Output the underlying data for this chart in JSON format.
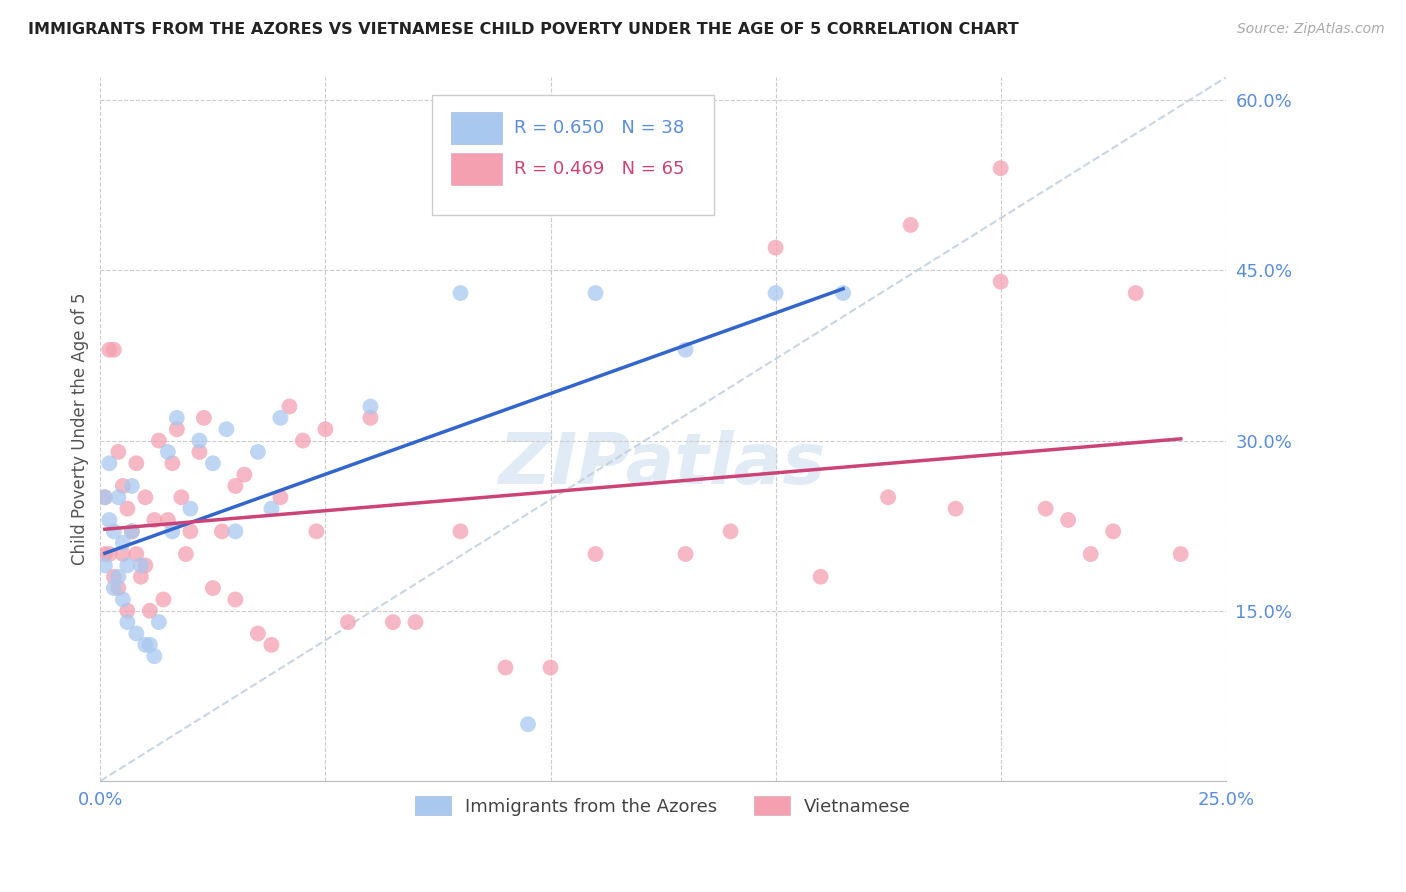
{
  "title": "IMMIGRANTS FROM THE AZORES VS VIETNAMESE CHILD POVERTY UNDER THE AGE OF 5 CORRELATION CHART",
  "source": "Source: ZipAtlas.com",
  "ylabel": "Child Poverty Under the Age of 5",
  "legend_label1": "Immigrants from the Azores",
  "legend_label2": "Vietnamese",
  "R1": 0.65,
  "N1": 38,
  "R2": 0.469,
  "N2": 65,
  "xlim": [
    0,
    0.25
  ],
  "ylim": [
    0,
    0.62
  ],
  "color_blue": "#A8C8F0",
  "color_pink": "#F4A0B0",
  "color_blue_line": "#3366CC",
  "color_pink_line": "#CC4477",
  "color_axis_labels": "#5B8DD9",
  "background_color": "#FFFFFF",
  "azores_x": [
    0.001,
    0.001,
    0.002,
    0.002,
    0.003,
    0.003,
    0.004,
    0.004,
    0.005,
    0.005,
    0.006,
    0.006,
    0.007,
    0.007,
    0.008,
    0.009,
    0.01,
    0.011,
    0.012,
    0.013,
    0.015,
    0.016,
    0.017,
    0.02,
    0.022,
    0.025,
    0.028,
    0.03,
    0.035,
    0.038,
    0.04,
    0.06,
    0.08,
    0.095,
    0.11,
    0.13,
    0.15,
    0.165
  ],
  "azores_y": [
    0.25,
    0.19,
    0.23,
    0.28,
    0.22,
    0.17,
    0.25,
    0.18,
    0.21,
    0.16,
    0.19,
    0.14,
    0.26,
    0.22,
    0.13,
    0.19,
    0.12,
    0.12,
    0.11,
    0.14,
    0.29,
    0.22,
    0.32,
    0.24,
    0.3,
    0.28,
    0.31,
    0.22,
    0.29,
    0.24,
    0.32,
    0.33,
    0.43,
    0.05,
    0.43,
    0.38,
    0.43,
    0.43
  ],
  "viet_x": [
    0.001,
    0.001,
    0.002,
    0.002,
    0.003,
    0.003,
    0.004,
    0.004,
    0.005,
    0.005,
    0.006,
    0.006,
    0.007,
    0.008,
    0.008,
    0.009,
    0.01,
    0.01,
    0.011,
    0.012,
    0.013,
    0.014,
    0.015,
    0.016,
    0.017,
    0.018,
    0.019,
    0.02,
    0.022,
    0.023,
    0.025,
    0.027,
    0.03,
    0.032,
    0.035,
    0.038,
    0.04,
    0.042,
    0.045,
    0.048,
    0.05,
    0.055,
    0.06,
    0.065,
    0.07,
    0.08,
    0.09,
    0.1,
    0.11,
    0.13,
    0.15,
    0.16,
    0.175,
    0.19,
    0.2,
    0.21,
    0.22,
    0.23,
    0.18,
    0.2,
    0.215,
    0.225,
    0.24,
    0.14,
    0.03
  ],
  "viet_y": [
    0.2,
    0.25,
    0.2,
    0.38,
    0.18,
    0.38,
    0.17,
    0.29,
    0.2,
    0.26,
    0.15,
    0.24,
    0.22,
    0.2,
    0.28,
    0.18,
    0.19,
    0.25,
    0.15,
    0.23,
    0.3,
    0.16,
    0.23,
    0.28,
    0.31,
    0.25,
    0.2,
    0.22,
    0.29,
    0.32,
    0.17,
    0.22,
    0.16,
    0.27,
    0.13,
    0.12,
    0.25,
    0.33,
    0.3,
    0.22,
    0.31,
    0.14,
    0.32,
    0.14,
    0.14,
    0.22,
    0.1,
    0.1,
    0.2,
    0.2,
    0.47,
    0.18,
    0.25,
    0.24,
    0.44,
    0.24,
    0.2,
    0.43,
    0.49,
    0.54,
    0.23,
    0.22,
    0.2,
    0.22,
    0.26
  ]
}
